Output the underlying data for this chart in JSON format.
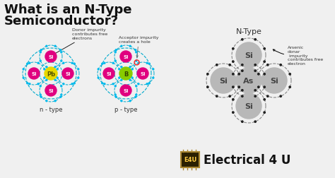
{
  "bg_color": "#f0f0f0",
  "title_line1": "What is an N-Type",
  "title_line2": "Semiconductor?",
  "title_color": "#111111",
  "title_fontsize": 13,
  "n_type_label": "n - type",
  "p_type_label": "p - type",
  "ntype_diagram_label": "N-Type",
  "donor_text": "Donor impurity\ncontributes free\nelectrons",
  "acceptor_text": "Acceptor impurity\ncreates a hole",
  "arsenic_text": "Arsenic\ndonar\n impurity\ncontributes free\nelectron",
  "n_center_atom": "Pb",
  "n_center_color": "#e8d800",
  "n_surround_color": "#e0007f",
  "p_center_atom": "B",
  "p_center_color": "#88cc00",
  "p_surround_color": "#e0007f",
  "as_center_atom": "As",
  "as_center_color": "#b8b8b8",
  "as_surround_color": "#b8b8b8",
  "electron_color": "#00bbee",
  "hole_color": "#ff2222",
  "dashed_color_left": "#00aacc",
  "dashed_color_right": "#888888",
  "e4u_text": "Electrical 4 U",
  "e4u_box_color": "#2a2000"
}
